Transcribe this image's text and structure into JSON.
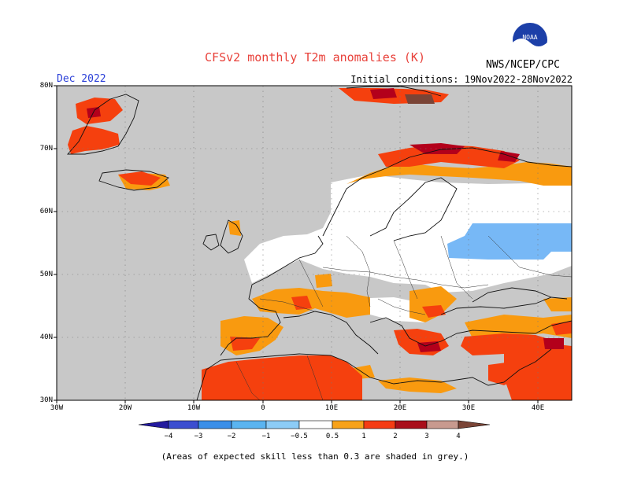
{
  "title": "CFSv2 monthly T2m anomalies (K)",
  "month": "Dec 2022",
  "initial_conditions": "Initial conditions: 19Nov2022-28Nov2022",
  "agency": "NWS/NCEP/CPC",
  "logo_text": "NOAA",
  "note": "(Areas of expected skill less than 0.3 are shaded in grey.)",
  "lat_labels": [
    "80N",
    "70N",
    "60N",
    "50N",
    "40N",
    "30N"
  ],
  "lon_labels": [
    "30W",
    "20W",
    "10W",
    "0",
    "10E",
    "20E",
    "30E",
    "40E"
  ],
  "colorbar": {
    "labels": [
      "−4",
      "−3",
      "−2",
      "−1",
      "−0.5",
      "0.5",
      "1",
      "2",
      "3",
      "4"
    ],
    "colors": [
      "#231a9e",
      "#3c4ed0",
      "#3b8fe8",
      "#5ab4f0",
      "#8cccf6",
      "#ffffff",
      "#f7a21a",
      "#f53c14",
      "#c2001c",
      "#a90f1b",
      "#c89a8f",
      "#7a4436"
    ]
  },
  "colors": {
    "grey_low_skill": "#c8c8c8",
    "near_normal": "#ffffff",
    "light_orange": "#f99a0f",
    "orange_red": "#f5400e",
    "dark_red": "#b3001b",
    "brown": "#7a4436",
    "light_blue": "#77b8f6"
  }
}
